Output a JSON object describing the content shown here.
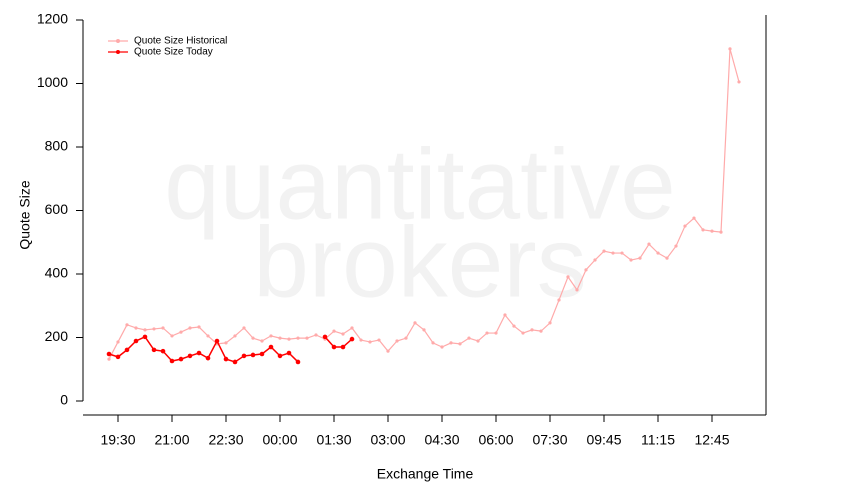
{
  "chart_data": {
    "type": "line",
    "watermark": [
      "quantitative",
      "brokers"
    ],
    "x_label": "Exchange Time",
    "y_label": "Quote Size",
    "categories": [
      null,
      "19:30",
      null,
      null,
      null,
      null,
      null,
      "21:00",
      null,
      null,
      null,
      null,
      null,
      "22:30",
      null,
      null,
      null,
      null,
      null,
      "00:00",
      null,
      null,
      null,
      null,
      null,
      "01:30",
      null,
      null,
      null,
      null,
      null,
      "03:00",
      null,
      null,
      null,
      null,
      null,
      "04:30",
      null,
      null,
      null,
      null,
      null,
      "06:00",
      null,
      null,
      null,
      null,
      null,
      "07:30",
      null,
      null,
      null,
      null,
      null,
      "09:45",
      null,
      null,
      null,
      null,
      null,
      "11:15",
      null,
      null,
      null,
      null,
      null,
      "12:45",
      null,
      null,
      null
    ],
    "series": [
      {
        "name": "Quote Size Historical",
        "color": "#ffaaaa",
        "values": [
          132,
          186,
          240,
          230,
          224,
          227,
          230,
          205,
          217,
          230,
          233,
          205,
          180,
          183,
          205,
          230,
          198,
          189,
          205,
          198,
          195,
          198,
          198,
          208,
          195,
          220,
          211,
          230,
          192,
          186,
          192,
          157,
          189,
          198,
          246,
          224,
          183,
          170,
          183,
          180,
          198,
          189,
          214,
          214,
          271,
          236,
          214,
          224,
          220,
          246,
          318,
          391,
          350,
          413,
          444,
          472,
          466,
          466,
          444,
          450,
          494,
          466,
          450,
          488,
          551,
          576,
          539,
          535,
          532,
          1109,
          1005
        ]
      },
      {
        "name": "Quote Size Today",
        "color": "#ff0000",
        "values": [
          148,
          139,
          161,
          189,
          202,
          161,
          157,
          126,
          132,
          142,
          151,
          135,
          189,
          132,
          123,
          142,
          145,
          148,
          170,
          142,
          151,
          123,
          null,
          null,
          202,
          170,
          170,
          195,
          null,
          null,
          null,
          null,
          null,
          null,
          null,
          null,
          null,
          null,
          null,
          null,
          null,
          null,
          null,
          null,
          null,
          null,
          null,
          null,
          null,
          null,
          null,
          null,
          null,
          null,
          null,
          null,
          null,
          null,
          null,
          null,
          null,
          null,
          null,
          null,
          null,
          null,
          null,
          null,
          null,
          null,
          null
        ]
      }
    ],
    "ylim": [
      0,
      1200
    ],
    "yticks": [
      0,
      200,
      400,
      600,
      800,
      1000,
      1200
    ],
    "legend": "top-left"
  }
}
